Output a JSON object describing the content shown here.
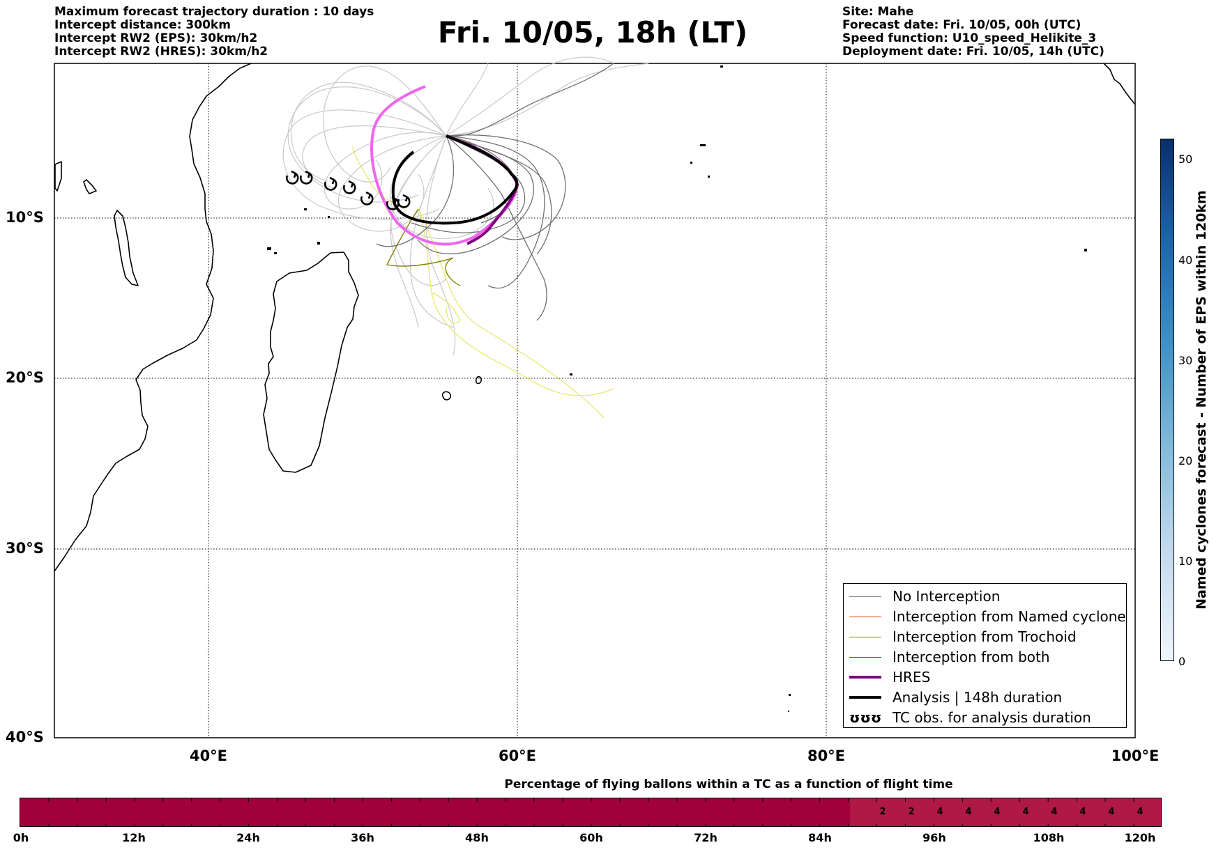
{
  "header_left": [
    "Maximum forecast trajectory duration : 10 days",
    "Intercept distance: 300km",
    "Intercept RW2 (EPS):  30km/h2",
    "Intercept RW2 (HRES): 30km/h2"
  ],
  "title": "Fri. 10/05, 18h (LT)",
  "header_right": [
    "Site: Mahe",
    "Forecast date: Fri. 10/05, 00h (UTC)",
    "Speed function: U10_speed_Helikite_3",
    "Deployment date: Fri. 10/05, 14h (UTC)"
  ],
  "map": {
    "lat_labels": [
      "10°S",
      "20°S",
      "30°S",
      "40°S"
    ],
    "lon_labels": [
      "40°E",
      "60°E",
      "80°E",
      "100°E"
    ],
    "colors": {
      "no_interception": "#808080",
      "named_cyclone": "#ff4500",
      "trochoid": "#808000",
      "both": "#008000",
      "hres": "#800080",
      "analysis": "#000000",
      "hres_pink": "#ee66ee",
      "ens_light": "#cccccc",
      "ens_yellow": "#e8e870"
    }
  },
  "legend": {
    "items": [
      "No Interception",
      "Interception from Named cyclone",
      "Interception from Trochoid",
      "Interception from both",
      "HRES",
      "Analysis | 148h duration",
      "TC obs. for analysis duration"
    ],
    "tc_symbol": "ʊʊʊ"
  },
  "colorbar_right": {
    "ticks": [
      "0",
      "10",
      "20",
      "30",
      "40",
      "50"
    ],
    "label": "Named cyclones forecast - Number of EPS within 120km"
  },
  "bottom": {
    "title": "Percentage of flying ballons within a TC as a function of flight time",
    "time_labels": [
      "0h",
      "12h",
      "24h",
      "36h",
      "48h",
      "60h",
      "72h",
      "84h",
      "96h",
      "108h",
      "120h"
    ],
    "cells": [
      "2",
      "2",
      "4",
      "4",
      "4",
      "4",
      "4",
      "4",
      "4",
      "4",
      "4"
    ],
    "bar_color": "#a1003b",
    "cell_color": "#b01846"
  }
}
